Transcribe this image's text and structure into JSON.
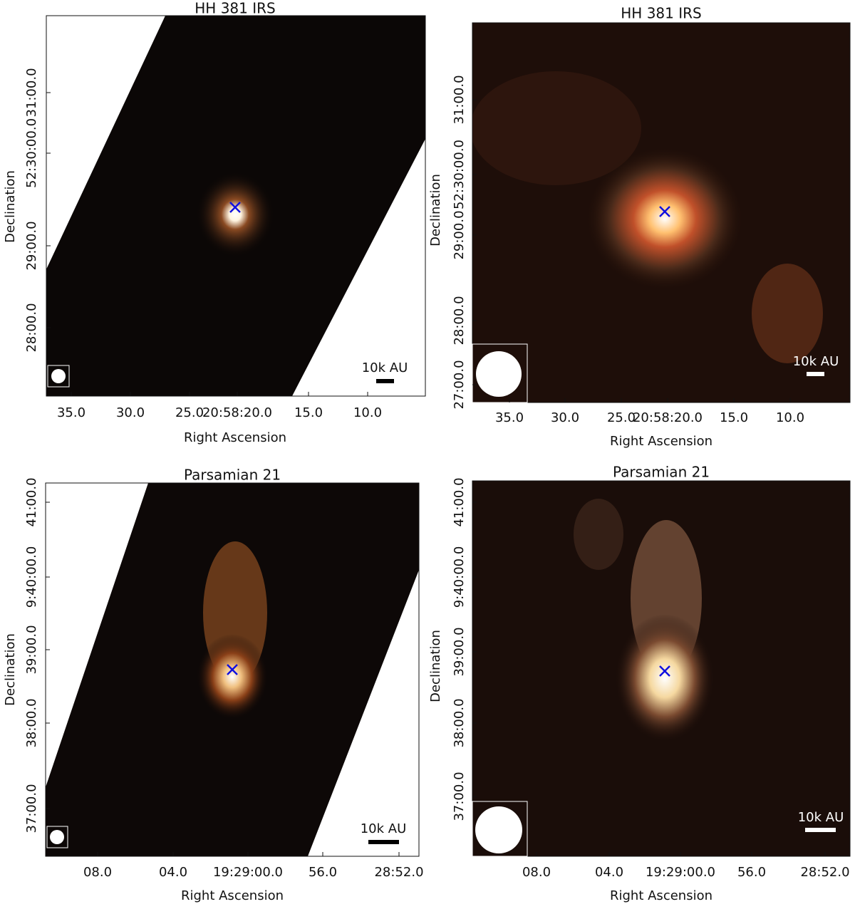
{
  "panels": [
    {
      "title": "HH 381 IRS",
      "x_label": "Right Ascension",
      "y_label": "Declination",
      "x_ticks": [
        "35.0",
        "30.0",
        "25.0",
        "20:58:20.0",
        "15.0",
        "10.0"
      ],
      "y_ticks": [
        "31:00.0",
        "52:30:00.0",
        "29:00.0",
        "28:00.0"
      ],
      "scale_label": "10k AU"
    },
    {
      "title": "HH 381 IRS",
      "x_label": "Right Ascension",
      "y_label": "Declination",
      "x_ticks": [
        "35.0",
        "30.0",
        "25.0",
        "20:58:20.0",
        "15.0",
        "10.0"
      ],
      "y_ticks": [
        "31:00.0",
        "52:30:00.0",
        "29:00.0",
        "28:00.0",
        "27:00.0"
      ],
      "scale_label": "10k AU"
    },
    {
      "title": "Parsamian 21",
      "x_label": "Right Ascension",
      "y_label": "Declination",
      "x_ticks": [
        "08.0",
        "04.0",
        "19:29:00.0",
        "56.0",
        "28:52.0"
      ],
      "y_ticks": [
        "41:00.0",
        "9:40:00.0",
        "39:00.0",
        "38:00.0",
        "37:00.0"
      ],
      "scale_label": "10k AU"
    },
    {
      "title": "Parsamian 21",
      "x_label": "Right Ascension",
      "y_label": "Declination",
      "x_ticks": [
        "08.0",
        "04.0",
        "19:29:00.0",
        "56.0",
        "28:52.0"
      ],
      "y_ticks": [
        "41:00.0",
        "9:40:00.0",
        "39:00.0",
        "38:00.0",
        "37:00.0"
      ],
      "scale_label": "10k AU"
    }
  ]
}
